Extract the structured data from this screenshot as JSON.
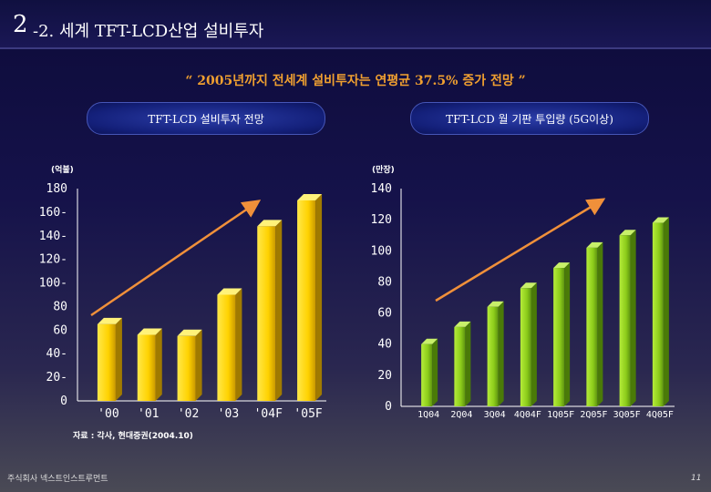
{
  "header": {
    "number": "2",
    "title": "-2. 세계 TFT-LCD산업 설비투자"
  },
  "headline": "“ 2005년까지 전세계 설비투자는 연평균 37.5% 증가 전망 ”",
  "pills": {
    "left": "TFT-LCD 설비투자 전망",
    "right": "TFT-LCD 월 기판 투입량 (5G이상)"
  },
  "units": {
    "left": "(억불)",
    "right": "(만장)"
  },
  "source": "자료 : 각사, 현대증권(2004.10)",
  "company": "주식회사 넥스트인스트루먼트",
  "page_number": "11",
  "colors": {
    "left_bar": "#ffd200",
    "right_bar": "#8ccc1a",
    "arrow": "#f0903a"
  },
  "chart_data": [
    {
      "type": "bar",
      "categories": [
        "'00",
        "'01",
        "'02",
        "'03",
        "'04F",
        "'05F"
      ],
      "values": [
        65,
        56,
        55,
        90,
        148,
        170
      ],
      "ylim": [
        0,
        180
      ],
      "ytick_labels": [
        "0",
        "20-",
        "40-",
        "60",
        "80",
        "100-",
        "120-",
        "140-",
        "160-",
        "180"
      ],
      "ylabel": "(억불)"
    },
    {
      "type": "bar",
      "categories": [
        "1Q04",
        "2Q04",
        "3Q04",
        "4Q04F",
        "1Q05F",
        "2Q05F",
        "3Q05F",
        "4Q05F"
      ],
      "values": [
        40,
        51,
        64,
        76,
        89,
        102,
        110,
        118
      ],
      "ylim": [
        0,
        140
      ],
      "ytick_labels": [
        "0",
        "20",
        "40",
        "60",
        "80",
        "100",
        "120",
        "140"
      ],
      "ylabel": "(만장)"
    }
  ]
}
